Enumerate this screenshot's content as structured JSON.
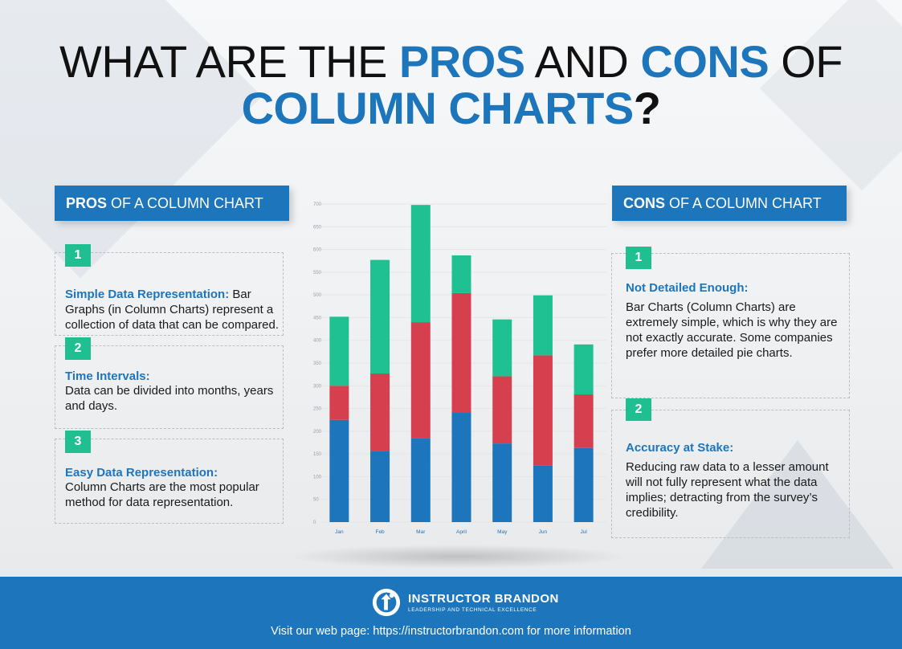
{
  "title": {
    "part1": "WHAT ARE THE ",
    "part2": "PROS",
    "part3": " AND ",
    "part4": "CONS",
    "part5": " OF",
    "line2": "COLUMN CHARTS",
    "qmark": "?"
  },
  "pros": {
    "header_bold": "PROS",
    "header_rest": " OF A COLUMN CHART",
    "items": [
      {
        "num": "1",
        "title": "Simple Data Representation:",
        "text": " Bar Graphs (in Column Charts) represent a collection of data that can be compared."
      },
      {
        "num": "2",
        "title": "Time Intervals:",
        "text": "Data can be divided into months, years and days."
      },
      {
        "num": "3",
        "title": "Easy Data Representation:",
        "text": "Column Charts are the most popular method for data representation."
      }
    ]
  },
  "cons": {
    "header_bold": "CONS",
    "header_rest": " OF A COLUMN CHART",
    "items": [
      {
        "num": "1",
        "title": "Not Detailed Enough:",
        "text": "Bar Charts (Column Charts) are extremely simple, which is why they are not exactly accurate. Some companies prefer more detailed pie charts."
      },
      {
        "num": "2",
        "title": "Accuracy at Stake:",
        "text": "Reducing raw data to a lesser amount will not fully represent what the data implies; detracting from the survey’s credibility."
      }
    ]
  },
  "chart_data": {
    "type": "bar",
    "stacked": true,
    "categories": [
      "Jan",
      "Feb",
      "Mar",
      "April",
      "May",
      "Jun",
      "Jul"
    ],
    "series": [
      {
        "values": [
          225,
          157,
          185,
          242,
          173,
          125,
          163
        ],
        "color": "#1d75bc"
      },
      {
        "values": [
          75,
          170,
          255,
          262,
          148,
          242,
          118
        ],
        "color": "#d6404e"
      },
      {
        "values": [
          152,
          250,
          258,
          83,
          125,
          132,
          110
        ],
        "color": "#1fc193"
      }
    ],
    "yticks": [
      0,
      50,
      100,
      150,
      200,
      250,
      300,
      350,
      400,
      450,
      500,
      550,
      600,
      650,
      700
    ],
    "ylim": [
      0,
      700
    ],
    "grid": true
  },
  "footer": {
    "brand_name": "INSTRUCTOR BRANDON",
    "brand_tag": "LEADERSHIP AND TECHNICAL EXCELLENCE",
    "text": "Visit our web page: https://instructorbrandon.com for more information",
    "logo_icon": "brand-logo-icon"
  },
  "colors": {
    "accent_blue": "#1d75bc",
    "accent_green": "#1fbf91",
    "accent_red": "#d6404e"
  }
}
